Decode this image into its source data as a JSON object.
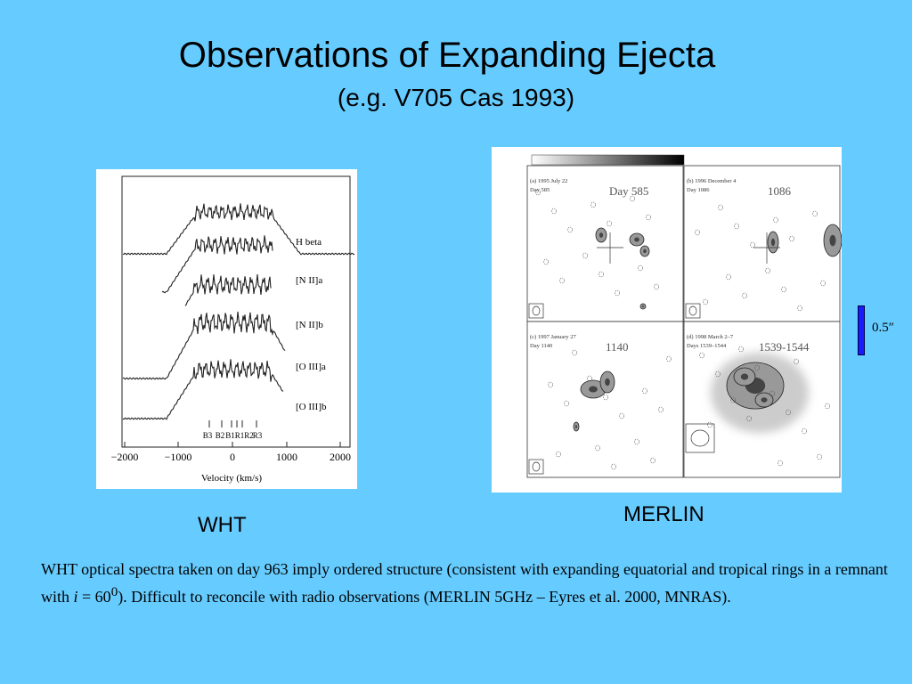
{
  "header": {
    "title": "Observations of Expanding Ejecta",
    "subtitle": "(e.g. V705 Cas 1993)"
  },
  "spectra_figure": {
    "line_labels": [
      "H beta",
      "[N II]a",
      "[N II]b",
      "[O III]a",
      "[O III]b"
    ],
    "component_labels": [
      "B3",
      "B2",
      "B1R1R2",
      "R3"
    ],
    "x_tick_labels": [
      "−2000",
      "−1000",
      "0",
      "1000",
      "2000"
    ],
    "x_axis_label": "Velocity (km/s)",
    "caption": "WHT"
  },
  "radio_figure": {
    "panels": [
      {
        "header": "(a) 1995 July 22",
        "day": "Day 585",
        "label": "Day 585"
      },
      {
        "header": "(b) 1996 December 4",
        "day": "Day 1086",
        "label": "1086"
      },
      {
        "header": "(c) 1997 January 27",
        "day": "Day 1140",
        "label": "1140"
      },
      {
        "header": "(d) 1998 March 2–7",
        "day": "Days 1539–1544",
        "label": "1539-1544"
      }
    ],
    "scale_label": "0.5″",
    "caption": "MERLIN"
  },
  "body": {
    "parts": [
      "WHT optical spectra taken on day 963 imply ordered structure (consistent with expanding equatorial and tropical rings in a remnant with ",
      "i",
      " = 60",
      "0",
      "). Difficult to reconcile with radio observations (MERLIN 5GHz – Eyres et al. 2000, MNRAS)."
    ]
  }
}
